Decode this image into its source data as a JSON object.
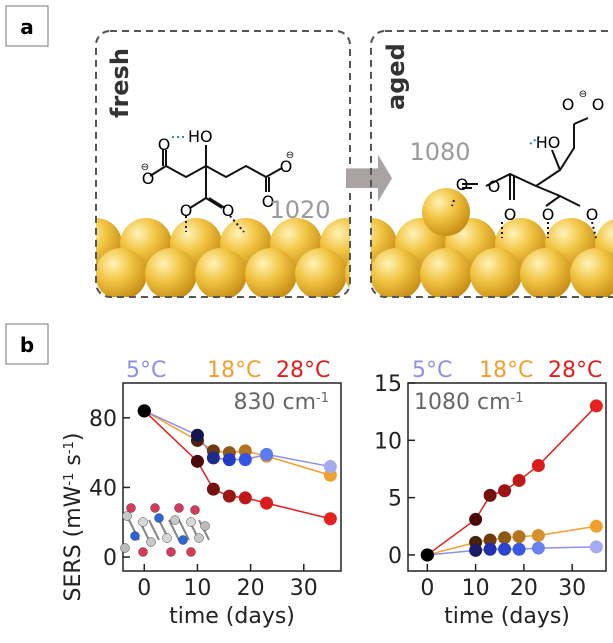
{
  "panel_a": {
    "label": "a",
    "fresh": {
      "title": "fresh",
      "wavenumber": "1020",
      "atoms": {
        "hydroxyl": "HO",
        "hydrogen_bond_donor": "HO",
        "carboxyl_o": "O",
        "charge": "⊖"
      }
    },
    "aged": {
      "title": "aged",
      "wavenumber": "1080",
      "atoms": {
        "hydroxyl": "HO",
        "carboxyl_o": "O",
        "charge": "⊖"
      }
    },
    "colors": {
      "gold": "#e8b52c",
      "gold_light": "#f7dc7a",
      "arrow": "#a9a3a3",
      "hbond": "#3b7fd6",
      "frame": "#555555"
    }
  },
  "panel_b": {
    "label": "b",
    "ylabel_main": "SERS (mW",
    "ylabel_sup1": "-1",
    "ylabel_mid": " s",
    "ylabel_sup2": "-1",
    "ylabel_end": ")",
    "temps": [
      {
        "label": "5°C",
        "color": "#8f8fe8"
      },
      {
        "label": "18°C",
        "color": "#f0a030"
      },
      {
        "label": "28°C",
        "color": "#e02020"
      }
    ]
  },
  "chart_data": [
    {
      "type": "line",
      "annotation": {
        "text": "830 cm",
        "sup": "-1"
      },
      "xlabel": "time (days)",
      "ylabel": "SERS (mW-1 s-1)",
      "xlim": [
        -4,
        37
      ],
      "ylim": [
        -8,
        100
      ],
      "xticks": [
        0,
        10,
        20,
        30
      ],
      "yticks": [
        0,
        40,
        80
      ],
      "x": [
        0,
        10,
        13,
        16,
        19,
        23,
        35
      ],
      "series": [
        {
          "name": "5°C",
          "color": "#8f8fe8",
          "values": [
            84,
            70,
            57,
            56,
            56,
            59,
            52
          ]
        },
        {
          "name": "18°C",
          "color": "#f0a030",
          "values": [
            84,
            67,
            61,
            60,
            61,
            58,
            47
          ]
        },
        {
          "name": "28°C",
          "color": "#e02020",
          "values": [
            84,
            55,
            39,
            35,
            34,
            31,
            22
          ]
        }
      ],
      "marker_colors": {
        "5°C": [
          "#000000",
          "#141652",
          "#1e2a8c",
          "#243ac4",
          "#3354e6",
          "#5c7af2",
          "#a8aaf0"
        ],
        "18°C": [
          "#000000",
          "#4a2208",
          "#6e3a10",
          "#8f5a18",
          "#b57420",
          "#d8902c",
          "#f0a030"
        ],
        "28°C": [
          "#000000",
          "#4a0808",
          "#741010",
          "#9c1414",
          "#c01818",
          "#dc1c1c",
          "#e82020"
        ]
      }
    },
    {
      "type": "line",
      "annotation": {
        "text": "1080 cm",
        "sup": "-1"
      },
      "xlabel": "time (days)",
      "ylim": [
        -1.4,
        15
      ],
      "xlim": [
        -4,
        37
      ],
      "xticks": [
        0,
        10,
        20,
        30
      ],
      "yticks": [
        0,
        5,
        10,
        15
      ],
      "x": [
        0,
        10,
        13,
        16,
        19,
        23,
        35
      ],
      "series": [
        {
          "name": "5°C",
          "color": "#8f8fe8",
          "values": [
            0,
            0.4,
            0.5,
            0.5,
            0.5,
            0.6,
            0.7
          ]
        },
        {
          "name": "18°C",
          "color": "#f0a030",
          "values": [
            0,
            1.1,
            1.3,
            1.5,
            1.6,
            1.7,
            2.5
          ]
        },
        {
          "name": "28°C",
          "color": "#e02020",
          "values": [
            0,
            3.1,
            5.2,
            5.6,
            6.5,
            7.8,
            13.0
          ]
        }
      ],
      "marker_colors": {
        "5°C": [
          "#000000",
          "#1a1c6a",
          "#2430a8",
          "#2c44d0",
          "#3a58e6",
          "#6a82f0",
          "#a8aaf0"
        ],
        "18°C": [
          "#000000",
          "#4a2208",
          "#6e3a10",
          "#8f5a18",
          "#b57420",
          "#d8902c",
          "#f0a030"
        ],
        "28°C": [
          "#000000",
          "#4a0808",
          "#741010",
          "#9c1414",
          "#c01818",
          "#dc1c1c",
          "#e82020"
        ]
      }
    }
  ]
}
